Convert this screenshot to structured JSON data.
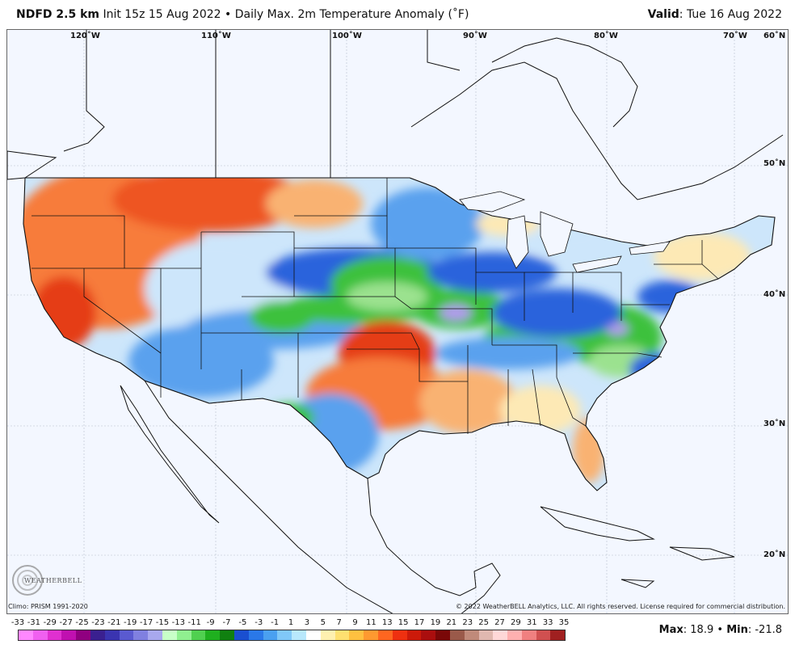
{
  "header": {
    "model": "NDFD 2.5 km",
    "init": "Init 15z 15 Aug 2022",
    "separator": "•",
    "product": "Daily Max. 2m Temperature Anomaly (˚F)",
    "valid_label": "Valid",
    "valid_value": ": Tue 16 Aug 2022"
  },
  "map": {
    "longitude_labels": [
      "120˚W",
      "110˚W",
      "100˚W",
      "90˚W",
      "80˚W",
      "70˚W",
      "60˚N"
    ],
    "latitude_labels": [
      "50˚N",
      "40˚N",
      "30˚N",
      "20˚N"
    ],
    "logo_text": "WEATHERBELL"
  },
  "footer": {
    "climo": "Climo: PRISM 1991-2020",
    "copyright": "© 2022 WeatherBELL Analytics, LLC. All rights reserved. License required for commercial distribution.",
    "max_label": "Max",
    "max_value": ": 18.9",
    "bullet": "•",
    "min_label": "Min",
    "min_value": ": -21.8"
  },
  "legend": {
    "ticks": [
      "-33",
      "-31",
      "-29",
      "-27",
      "-25",
      "-23",
      "-21",
      "-19",
      "-17",
      "-15",
      "-13",
      "-11",
      "-9",
      "-7",
      "-5",
      "-3",
      "-1",
      "1",
      "3",
      "5",
      "7",
      "9",
      "11",
      "13",
      "15",
      "17",
      "19",
      "21",
      "23",
      "25",
      "27",
      "29",
      "31",
      "33",
      "35"
    ],
    "colors": [
      "#ff88ff",
      "#f060f0",
      "#e030d0",
      "#c010b0",
      "#900080",
      "#3a2090",
      "#3a34b0",
      "#5a5ad0",
      "#8080e0",
      "#a8a8ee",
      "#c8ffc8",
      "#90f090",
      "#50d050",
      "#1fb01f",
      "#108010",
      "#1a4fd0",
      "#2a78e8",
      "#4aa0f0",
      "#80c8f8",
      "#b8e8fc",
      "#ffffff",
      "#fff0b0",
      "#ffe070",
      "#ffc040",
      "#ff9930",
      "#ff6620",
      "#ee3010",
      "#cc1a0a",
      "#aa0e0e",
      "#7a0808",
      "#9a5a4a",
      "#c08a7a",
      "#e0b8b0",
      "#ffd8d8",
      "#ffb0b0",
      "#f08080",
      "#d05050",
      "#a02020"
    ],
    "stats_separator": " "
  },
  "colors": {
    "ocean": "#f3f7ff",
    "warm_strong": "#e53c15",
    "warm": "#f77b3b",
    "warm_light": "#f9b272",
    "neutral": "#fde9b5",
    "cool_light": "#cde6fb",
    "cool": "#5aa1ee",
    "cool_strong": "#2a64dc",
    "green": "#3ec13e",
    "green_light": "#9be28f",
    "purple": "#b49af0"
  }
}
